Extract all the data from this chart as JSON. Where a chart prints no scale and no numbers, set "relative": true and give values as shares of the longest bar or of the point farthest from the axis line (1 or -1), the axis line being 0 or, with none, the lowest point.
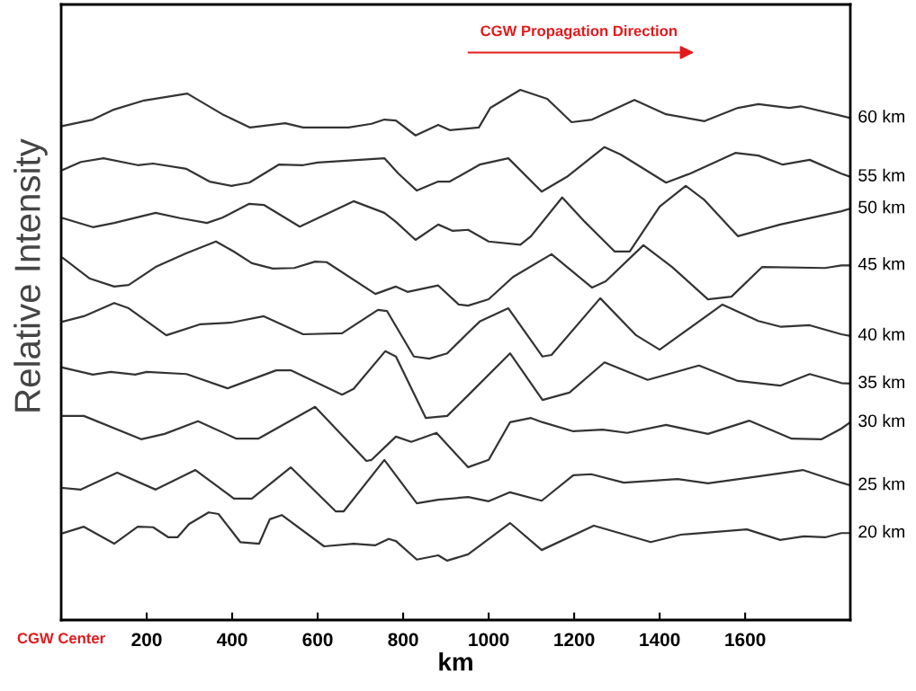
{
  "chart_data": {
    "type": "line",
    "relative": true,
    "xlabel": "km",
    "ylabel": "Relative Intensity",
    "annotations": [
      "CGW Propagation Direction"
    ],
    "xlim": [
      0,
      1846
    ],
    "xticks": [
      {
        "value": 0,
        "label": "CGW Center"
      },
      200,
      400,
      600,
      800,
      1000,
      1200,
      1400,
      1600
    ],
    "grid": false,
    "legend": false,
    "marker": "none",
    "line_style": "solid",
    "tick_labels": "x",
    "series": [
      {
        "name": "60 km",
        "color": "#333333",
        "x": [
          4,
          74,
          124,
          194,
          295,
          377,
          442,
          524,
          566,
          672,
          726,
          756,
          783,
          829,
          882,
          909,
          977,
          1004,
          1074,
          1137,
          1194,
          1242,
          1341,
          1415,
          1505,
          1583,
          1631,
          1703,
          1730,
          1825,
          1846
        ],
        "values": [
          0.932,
          0.944,
          0.963,
          0.98,
          0.993,
          0.954,
          0.929,
          0.937,
          0.929,
          0.929,
          0.936,
          0.944,
          0.942,
          0.914,
          0.934,
          0.924,
          0.929,
          0.966,
          1.0,
          0.983,
          0.939,
          0.944,
          0.981,
          0.954,
          0.941,
          0.966,
          0.973,
          0.966,
          0.969,
          0.951,
          0.947
        ]
      },
      {
        "name": "55 km",
        "color": "#333333",
        "x": [
          4,
          46,
          99,
          179,
          215,
          293,
          347,
          398,
          440,
          509,
          566,
          600,
          756,
          789,
          832,
          882,
          909,
          979,
          1046,
          1124,
          1183,
          1271,
          1309,
          1415,
          1471,
          1577,
          1631,
          1688,
          1751,
          1825,
          1846
        ],
        "values": [
          0.849,
          0.864,
          0.871,
          0.858,
          0.861,
          0.851,
          0.827,
          0.819,
          0.825,
          0.859,
          0.858,
          0.863,
          0.871,
          0.842,
          0.81,
          0.827,
          0.827,
          0.859,
          0.871,
          0.808,
          0.836,
          0.892,
          0.878,
          0.825,
          0.842,
          0.881,
          0.876,
          0.859,
          0.868,
          0.842,
          0.836
        ]
      },
      {
        "name": "50 km",
        "color": "#333333",
        "x": [
          4,
          74,
          124,
          221,
          278,
          341,
          377,
          440,
          474,
          558,
          684,
          756,
          783,
          829,
          882,
          916,
          952,
          1000,
          1074,
          1099,
          1172,
          1225,
          1295,
          1330,
          1400,
          1461,
          1505,
          1583,
          1682,
          1825,
          1846
        ],
        "values": [
          0.758,
          0.741,
          0.749,
          0.768,
          0.758,
          0.749,
          0.759,
          0.785,
          0.783,
          0.742,
          0.79,
          0.768,
          0.751,
          0.717,
          0.746,
          0.734,
          0.736,
          0.714,
          0.708,
          0.724,
          0.797,
          0.751,
          0.695,
          0.695,
          0.78,
          0.819,
          0.792,
          0.724,
          0.746,
          0.771,
          0.776
        ]
      },
      {
        "name": "45 km",
        "color": "#333333",
        "x": [
          4,
          67,
          124,
          158,
          221,
          293,
          362,
          404,
          446,
          495,
          545,
          594,
          621,
          735,
          783,
          810,
          882,
          930,
          952,
          1000,
          1057,
          1147,
          1242,
          1274,
          1362,
          1429,
          1513,
          1568,
          1640,
          1787,
          1825,
          1846
        ],
        "values": [
          0.683,
          0.644,
          0.629,
          0.632,
          0.666,
          0.692,
          0.714,
          0.695,
          0.673,
          0.663,
          0.664,
          0.676,
          0.675,
          0.615,
          0.629,
          0.619,
          0.631,
          0.595,
          0.593,
          0.605,
          0.647,
          0.69,
          0.627,
          0.639,
          0.707,
          0.666,
          0.605,
          0.61,
          0.666,
          0.664,
          0.669,
          0.669
        ]
      },
      {
        "name": "40 km",
        "color": "#333333",
        "x": [
          4,
          53,
          124,
          158,
          246,
          326,
          398,
          474,
          566,
          657,
          741,
          762,
          825,
          861,
          903,
          952,
          979,
          1046,
          1126,
          1147,
          1261,
          1345,
          1400,
          1547,
          1631,
          1684,
          1751,
          1825,
          1846
        ],
        "values": [
          0.563,
          0.573,
          0.598,
          0.588,
          0.537,
          0.558,
          0.561,
          0.573,
          0.539,
          0.541,
          0.585,
          0.583,
          0.497,
          0.493,
          0.503,
          0.542,
          0.563,
          0.588,
          0.497,
          0.5,
          0.607,
          0.537,
          0.51,
          0.595,
          0.564,
          0.553,
          0.556,
          0.539,
          0.536
        ]
      },
      {
        "name": "35 km",
        "color": "#333333",
        "x": [
          4,
          74,
          116,
          173,
          200,
          293,
          389,
          503,
          537,
          657,
          684,
          758,
          783,
          853,
          903,
          952,
          1050,
          1126,
          1189,
          1271,
          1372,
          1492,
          1583,
          1682,
          1751,
          1825,
          1846
        ],
        "values": [
          0.476,
          0.463,
          0.468,
          0.463,
          0.468,
          0.464,
          0.437,
          0.471,
          0.471,
          0.425,
          0.436,
          0.507,
          0.497,
          0.381,
          0.385,
          0.424,
          0.503,
          0.415,
          0.429,
          0.486,
          0.453,
          0.48,
          0.451,
          0.442,
          0.464,
          0.447,
          0.446
        ]
      },
      {
        "name": "30 km",
        "color": "#333333",
        "x": [
          4,
          53,
          187,
          242,
          320,
          410,
          461,
          594,
          714,
          726,
          783,
          819,
          878,
          952,
          958,
          1000,
          1050,
          1099,
          1126,
          1198,
          1267,
          1324,
          1415,
          1513,
          1610,
          1709,
          1779,
          1825,
          1846
        ],
        "values": [
          0.385,
          0.385,
          0.341,
          0.351,
          0.375,
          0.342,
          0.342,
          0.402,
          0.3,
          0.302,
          0.346,
          0.336,
          0.353,
          0.288,
          0.29,
          0.302,
          0.373,
          0.381,
          0.373,
          0.356,
          0.359,
          0.353,
          0.368,
          0.351,
          0.376,
          0.342,
          0.341,
          0.361,
          0.373
        ]
      },
      {
        "name": "25 km",
        "color": "#333333",
        "x": [
          4,
          46,
          131,
          221,
          314,
          404,
          446,
          537,
          642,
          661,
          756,
          832,
          882,
          952,
          1000,
          1050,
          1124,
          1198,
          1240,
          1316,
          1442,
          1513,
          1631,
          1735,
          1825,
          1846
        ],
        "values": [
          0.249,
          0.246,
          0.278,
          0.246,
          0.283,
          0.229,
          0.229,
          0.288,
          0.205,
          0.205,
          0.302,
          0.22,
          0.227,
          0.232,
          0.224,
          0.241,
          0.225,
          0.273,
          0.275,
          0.259,
          0.266,
          0.258,
          0.271,
          0.283,
          0.259,
          0.254
        ]
      },
      {
        "name": "20 km",
        "color": "#333333",
        "x": [
          4,
          53,
          124,
          179,
          215,
          251,
          272,
          299,
          345,
          368,
          419,
          463,
          488,
          516,
          615,
          684,
          735,
          766,
          783,
          832,
          882,
          903,
          952,
          1050,
          1124,
          1246,
          1379,
          1450,
          1604,
          1682,
          1737,
          1787,
          1825,
          1846
        ],
        "values": [
          0.164,
          0.176,
          0.144,
          0.176,
          0.175,
          0.156,
          0.156,
          0.181,
          0.203,
          0.2,
          0.147,
          0.144,
          0.19,
          0.198,
          0.139,
          0.144,
          0.141,
          0.153,
          0.149,
          0.114,
          0.122,
          0.112,
          0.124,
          0.183,
          0.132,
          0.178,
          0.147,
          0.161,
          0.171,
          0.151,
          0.158,
          0.156,
          0.164,
          0.164
        ]
      }
    ]
  }
}
